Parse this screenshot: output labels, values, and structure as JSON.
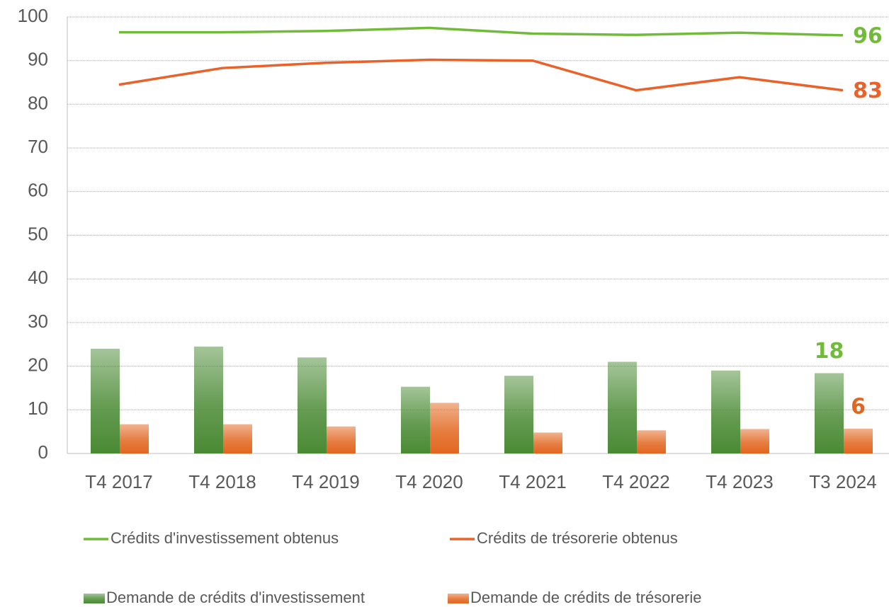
{
  "chart_data": {
    "type": "bar",
    "categories": [
      "T4 2017",
      "T4 2018",
      "T4 2019",
      "T4 2020",
      "T4 2021",
      "T4 2022",
      "T4 2023",
      "T3 2024"
    ],
    "series": [
      {
        "name": "Crédits d'investissement obtenus",
        "type": "line",
        "color": "#72bb3a",
        "values": [
          96.5,
          96.5,
          96.8,
          97.5,
          96.2,
          95.9,
          96.4,
          95.8
        ],
        "value_labels": [
          null,
          null,
          null,
          null,
          null,
          null,
          null,
          "96"
        ]
      },
      {
        "name": "Crédits de trésorerie obtenus",
        "type": "line",
        "color": "#e8622a",
        "values": [
          84.5,
          88.3,
          89.5,
          90.2,
          90.0,
          83.2,
          86.2,
          83.2
        ],
        "value_labels": [
          null,
          null,
          null,
          null,
          null,
          null,
          null,
          "83"
        ]
      },
      {
        "name": "Demande de crédits d'investissement",
        "type": "bar",
        "color": "#4a8a34",
        "values": [
          24.0,
          24.5,
          22.0,
          15.3,
          17.8,
          21.0,
          19.0,
          18.4
        ],
        "value_labels": [
          null,
          null,
          null,
          null,
          null,
          null,
          null,
          "18"
        ]
      },
      {
        "name": "Demande de crédits de trésorerie",
        "type": "bar",
        "color": "#e2661f",
        "values": [
          6.7,
          6.7,
          6.2,
          11.6,
          4.8,
          5.3,
          5.6,
          5.7
        ],
        "value_labels": [
          null,
          null,
          null,
          null,
          null,
          null,
          null,
          "6"
        ]
      }
    ],
    "ylim": [
      0,
      100
    ],
    "yticks": [
      0,
      10,
      20,
      30,
      40,
      50,
      60,
      70,
      80,
      90,
      100
    ],
    "grid": true
  }
}
